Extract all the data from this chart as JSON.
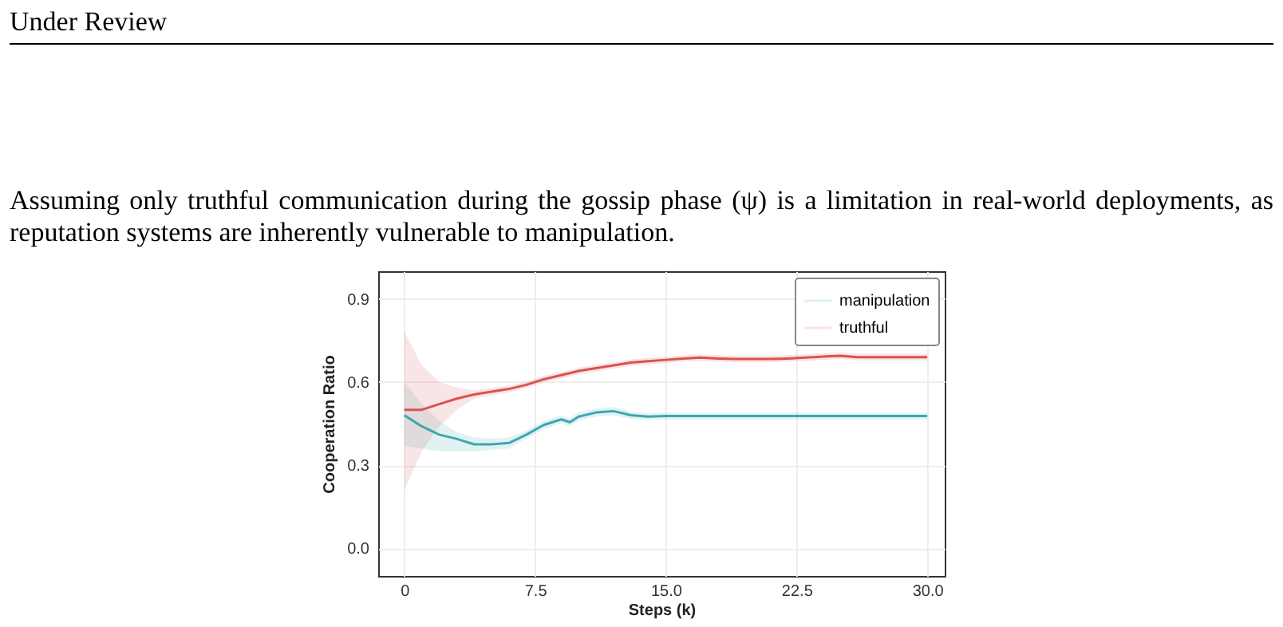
{
  "chart_data": {
    "type": "line",
    "xlabel": "Steps (k)",
    "ylabel": "Cooperation Ratio",
    "annotations": [
      "Under Review",
      "Assuming only truthful communication during the gossip phase (ψ) is a limitation in real-world deployments, as reputation systems are inherently vulnerable to manipulation."
    ],
    "x": [
      0,
      1,
      2,
      3,
      4,
      5,
      6,
      7,
      8,
      9,
      9.5,
      10,
      11,
      12,
      13,
      14,
      15,
      16,
      17,
      18,
      19,
      20,
      21,
      22,
      23,
      24,
      25,
      26,
      27,
      28,
      29,
      30
    ],
    "series": [
      {
        "name": "manipulation",
        "color": "#3ea7b0",
        "values": [
          0.48,
          0.44,
          0.41,
          0.395,
          0.375,
          0.375,
          0.38,
          0.41,
          0.445,
          0.465,
          0.455,
          0.475,
          0.49,
          0.495,
          0.48,
          0.475,
          0.477,
          0.477,
          0.477,
          0.477,
          0.477,
          0.477,
          0.477,
          0.477,
          0.477,
          0.477,
          0.477,
          0.477,
          0.477,
          0.477,
          0.477,
          0.477
        ],
        "lower": [
          0.37,
          0.36,
          0.35,
          0.35,
          0.35,
          0.355,
          0.36,
          0.395,
          0.43,
          0.45,
          0.44,
          0.46,
          0.475,
          0.48,
          0.467,
          0.463,
          0.465,
          0.465,
          0.465,
          0.465,
          0.465,
          0.465,
          0.465,
          0.465,
          0.465,
          0.465,
          0.465,
          0.465,
          0.465,
          0.465,
          0.465,
          0.465
        ],
        "upper": [
          0.6,
          0.52,
          0.46,
          0.42,
          0.4,
          0.395,
          0.4,
          0.425,
          0.46,
          0.48,
          0.47,
          0.49,
          0.505,
          0.51,
          0.493,
          0.487,
          0.489,
          0.489,
          0.489,
          0.489,
          0.489,
          0.489,
          0.489,
          0.489,
          0.489,
          0.489,
          0.489,
          0.489,
          0.489,
          0.489,
          0.489,
          0.489
        ]
      },
      {
        "name": "truthful",
        "color": "#d9534f",
        "values": [
          0.5,
          0.5,
          0.52,
          0.54,
          0.555,
          0.565,
          0.575,
          0.59,
          0.61,
          0.625,
          0.632,
          0.64,
          0.65,
          0.66,
          0.67,
          0.675,
          0.68,
          0.685,
          0.688,
          0.685,
          0.683,
          0.683,
          0.683,
          0.685,
          0.688,
          0.692,
          0.695,
          0.69,
          0.69,
          0.69,
          0.69,
          0.69
        ],
        "lower": [
          0.21,
          0.35,
          0.44,
          0.5,
          0.54,
          0.552,
          0.563,
          0.578,
          0.598,
          0.613,
          0.62,
          0.628,
          0.638,
          0.648,
          0.658,
          0.663,
          0.668,
          0.673,
          0.676,
          0.673,
          0.671,
          0.671,
          0.671,
          0.673,
          0.676,
          0.68,
          0.683,
          0.678,
          0.678,
          0.678,
          0.678,
          0.678
        ],
        "upper": [
          0.78,
          0.66,
          0.6,
          0.58,
          0.57,
          0.578,
          0.587,
          0.602,
          0.622,
          0.637,
          0.644,
          0.652,
          0.662,
          0.672,
          0.682,
          0.687,
          0.692,
          0.697,
          0.7,
          0.697,
          0.695,
          0.695,
          0.695,
          0.697,
          0.7,
          0.704,
          0.707,
          0.702,
          0.702,
          0.702,
          0.702,
          0.702
        ]
      }
    ],
    "xlim": [
      -1.5,
      31
    ],
    "ylim": [
      -0.1,
      1.0
    ],
    "xticks": [
      0,
      7.5,
      {
        "value": 15,
        "label": "15.0"
      },
      22.5,
      {
        "value": 30,
        "label": "30.0"
      }
    ],
    "yticks": [
      {
        "value": 0,
        "label": "0.0"
      },
      0.3,
      0.6,
      0.9
    ],
    "grid": true,
    "legend": "top right",
    "marker": "none",
    "line_style": "solid"
  }
}
